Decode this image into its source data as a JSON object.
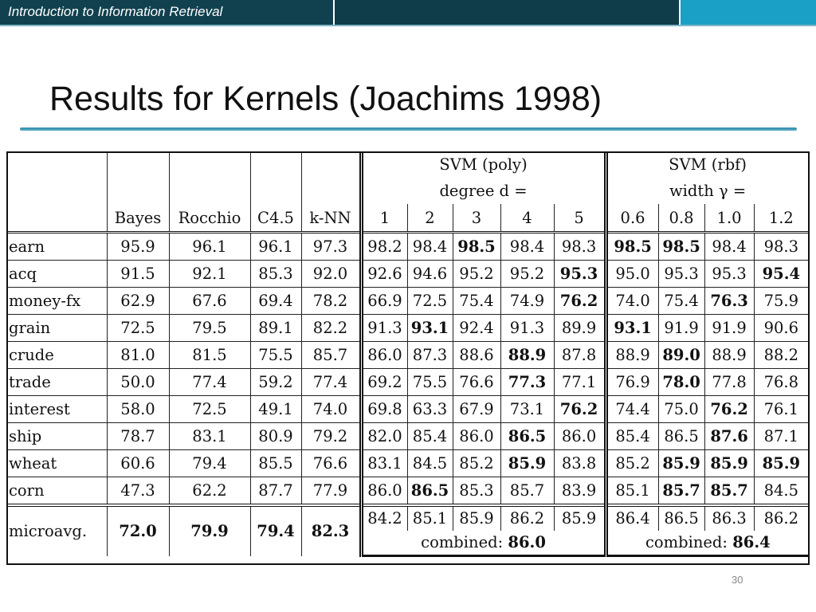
{
  "header": {
    "course_title": "Introduction to Information Retrieval"
  },
  "slide": {
    "title": "Results for Kernels (Joachims 1998)",
    "page_number": "30"
  },
  "table": {
    "svm_poly_title": "SVM (poly)",
    "svm_poly_param": "degree d =",
    "svm_rbf_title": "SVM (rbf)",
    "svm_rbf_param": "width γ =",
    "method_headers": [
      "Bayes",
      "Rocchio",
      "C4.5",
      "k-NN"
    ],
    "poly_degrees": [
      "1",
      "2",
      "3",
      "4",
      "5"
    ],
    "rbf_widths": [
      "0.6",
      "0.8",
      "1.0",
      "1.2"
    ],
    "rows": [
      {
        "label": "earn",
        "values": [
          "95.9",
          "96.1",
          "96.1",
          "97.3",
          "98.2",
          "98.4",
          "98.5",
          "98.4",
          "98.3",
          "98.5",
          "98.5",
          "98.4",
          "98.3"
        ]
      },
      {
        "label": "acq",
        "values": [
          "91.5",
          "92.1",
          "85.3",
          "92.0",
          "92.6",
          "94.6",
          "95.2",
          "95.2",
          "95.3",
          "95.0",
          "95.3",
          "95.3",
          "95.4"
        ]
      },
      {
        "label": "money-fx",
        "values": [
          "62.9",
          "67.6",
          "69.4",
          "78.2",
          "66.9",
          "72.5",
          "75.4",
          "74.9",
          "76.2",
          "74.0",
          "75.4",
          "76.3",
          "75.9"
        ]
      },
      {
        "label": "grain",
        "values": [
          "72.5",
          "79.5",
          "89.1",
          "82.2",
          "91.3",
          "93.1",
          "92.4",
          "91.3",
          "89.9",
          "93.1",
          "91.9",
          "91.9",
          "90.6"
        ]
      },
      {
        "label": "crude",
        "values": [
          "81.0",
          "81.5",
          "75.5",
          "85.7",
          "86.0",
          "87.3",
          "88.6",
          "88.9",
          "87.8",
          "88.9",
          "89.0",
          "88.9",
          "88.2"
        ]
      },
      {
        "label": "trade",
        "values": [
          "50.0",
          "77.4",
          "59.2",
          "77.4",
          "69.2",
          "75.5",
          "76.6",
          "77.3",
          "77.1",
          "76.9",
          "78.0",
          "77.8",
          "76.8"
        ]
      },
      {
        "label": "interest",
        "values": [
          "58.0",
          "72.5",
          "49.1",
          "74.0",
          "69.8",
          "63.3",
          "67.9",
          "73.1",
          "76.2",
          "74.4",
          "75.0",
          "76.2",
          "76.1"
        ]
      },
      {
        "label": "ship",
        "values": [
          "78.7",
          "83.1",
          "80.9",
          "79.2",
          "82.0",
          "85.4",
          "86.0",
          "86.5",
          "86.0",
          "85.4",
          "86.5",
          "87.6",
          "87.1"
        ]
      },
      {
        "label": "wheat",
        "values": [
          "60.6",
          "79.4",
          "85.5",
          "76.6",
          "83.1",
          "84.5",
          "85.2",
          "85.9",
          "83.8",
          "85.2",
          "85.9",
          "85.9",
          "85.9"
        ]
      },
      {
        "label": "corn",
        "values": [
          "47.3",
          "62.2",
          "87.7",
          "77.9",
          "86.0",
          "86.5",
          "85.3",
          "85.7",
          "83.9",
          "85.1",
          "85.7",
          "85.7",
          "84.5"
        ]
      }
    ],
    "microavg": {
      "label": "microavg.",
      "methods": [
        "72.0",
        "79.9",
        "79.4",
        "82.3"
      ],
      "poly": [
        "84.2",
        "85.1",
        "85.9",
        "86.2",
        "85.9"
      ],
      "rbf": [
        "86.4",
        "86.5",
        "86.3",
        "86.2"
      ],
      "poly_combined_label": "combined:",
      "poly_combined_value": "86.0",
      "rbf_combined_label": "combined:",
      "rbf_combined_value": "86.4"
    }
  }
}
